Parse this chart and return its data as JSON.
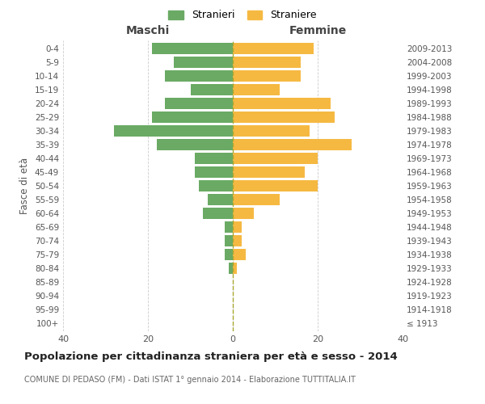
{
  "age_groups": [
    "100+",
    "95-99",
    "90-94",
    "85-89",
    "80-84",
    "75-79",
    "70-74",
    "65-69",
    "60-64",
    "55-59",
    "50-54",
    "45-49",
    "40-44",
    "35-39",
    "30-34",
    "25-29",
    "20-24",
    "15-19",
    "10-14",
    "5-9",
    "0-4"
  ],
  "birth_years": [
    "≤ 1913",
    "1914-1918",
    "1919-1923",
    "1924-1928",
    "1929-1933",
    "1934-1938",
    "1939-1943",
    "1944-1948",
    "1949-1953",
    "1954-1958",
    "1959-1963",
    "1964-1968",
    "1969-1973",
    "1974-1978",
    "1979-1983",
    "1984-1988",
    "1989-1993",
    "1994-1998",
    "1999-2003",
    "2004-2008",
    "2009-2013"
  ],
  "maschi": [
    0,
    0,
    0,
    0,
    1,
    2,
    2,
    2,
    7,
    6,
    8,
    9,
    9,
    18,
    28,
    19,
    16,
    10,
    16,
    14,
    19
  ],
  "femmine": [
    0,
    0,
    0,
    0,
    1,
    3,
    2,
    2,
    5,
    11,
    20,
    17,
    20,
    28,
    18,
    24,
    23,
    11,
    16,
    16,
    19
  ],
  "male_color": "#6aaa64",
  "female_color": "#f5b942",
  "title": "Popolazione per cittadinanza straniera per età e sesso - 2014",
  "subtitle": "COMUNE DI PEDASO (FM) - Dati ISTAT 1° gennaio 2014 - Elaborazione TUTTITALIA.IT",
  "xlabel_left": "Maschi",
  "xlabel_right": "Femmine",
  "ylabel": "Fasce di età",
  "legend_stranieri": "Stranieri",
  "legend_straniere": "Straniere",
  "xlim": 40,
  "background_color": "#ffffff",
  "grid_color": "#cccccc",
  "bar_height": 0.8
}
